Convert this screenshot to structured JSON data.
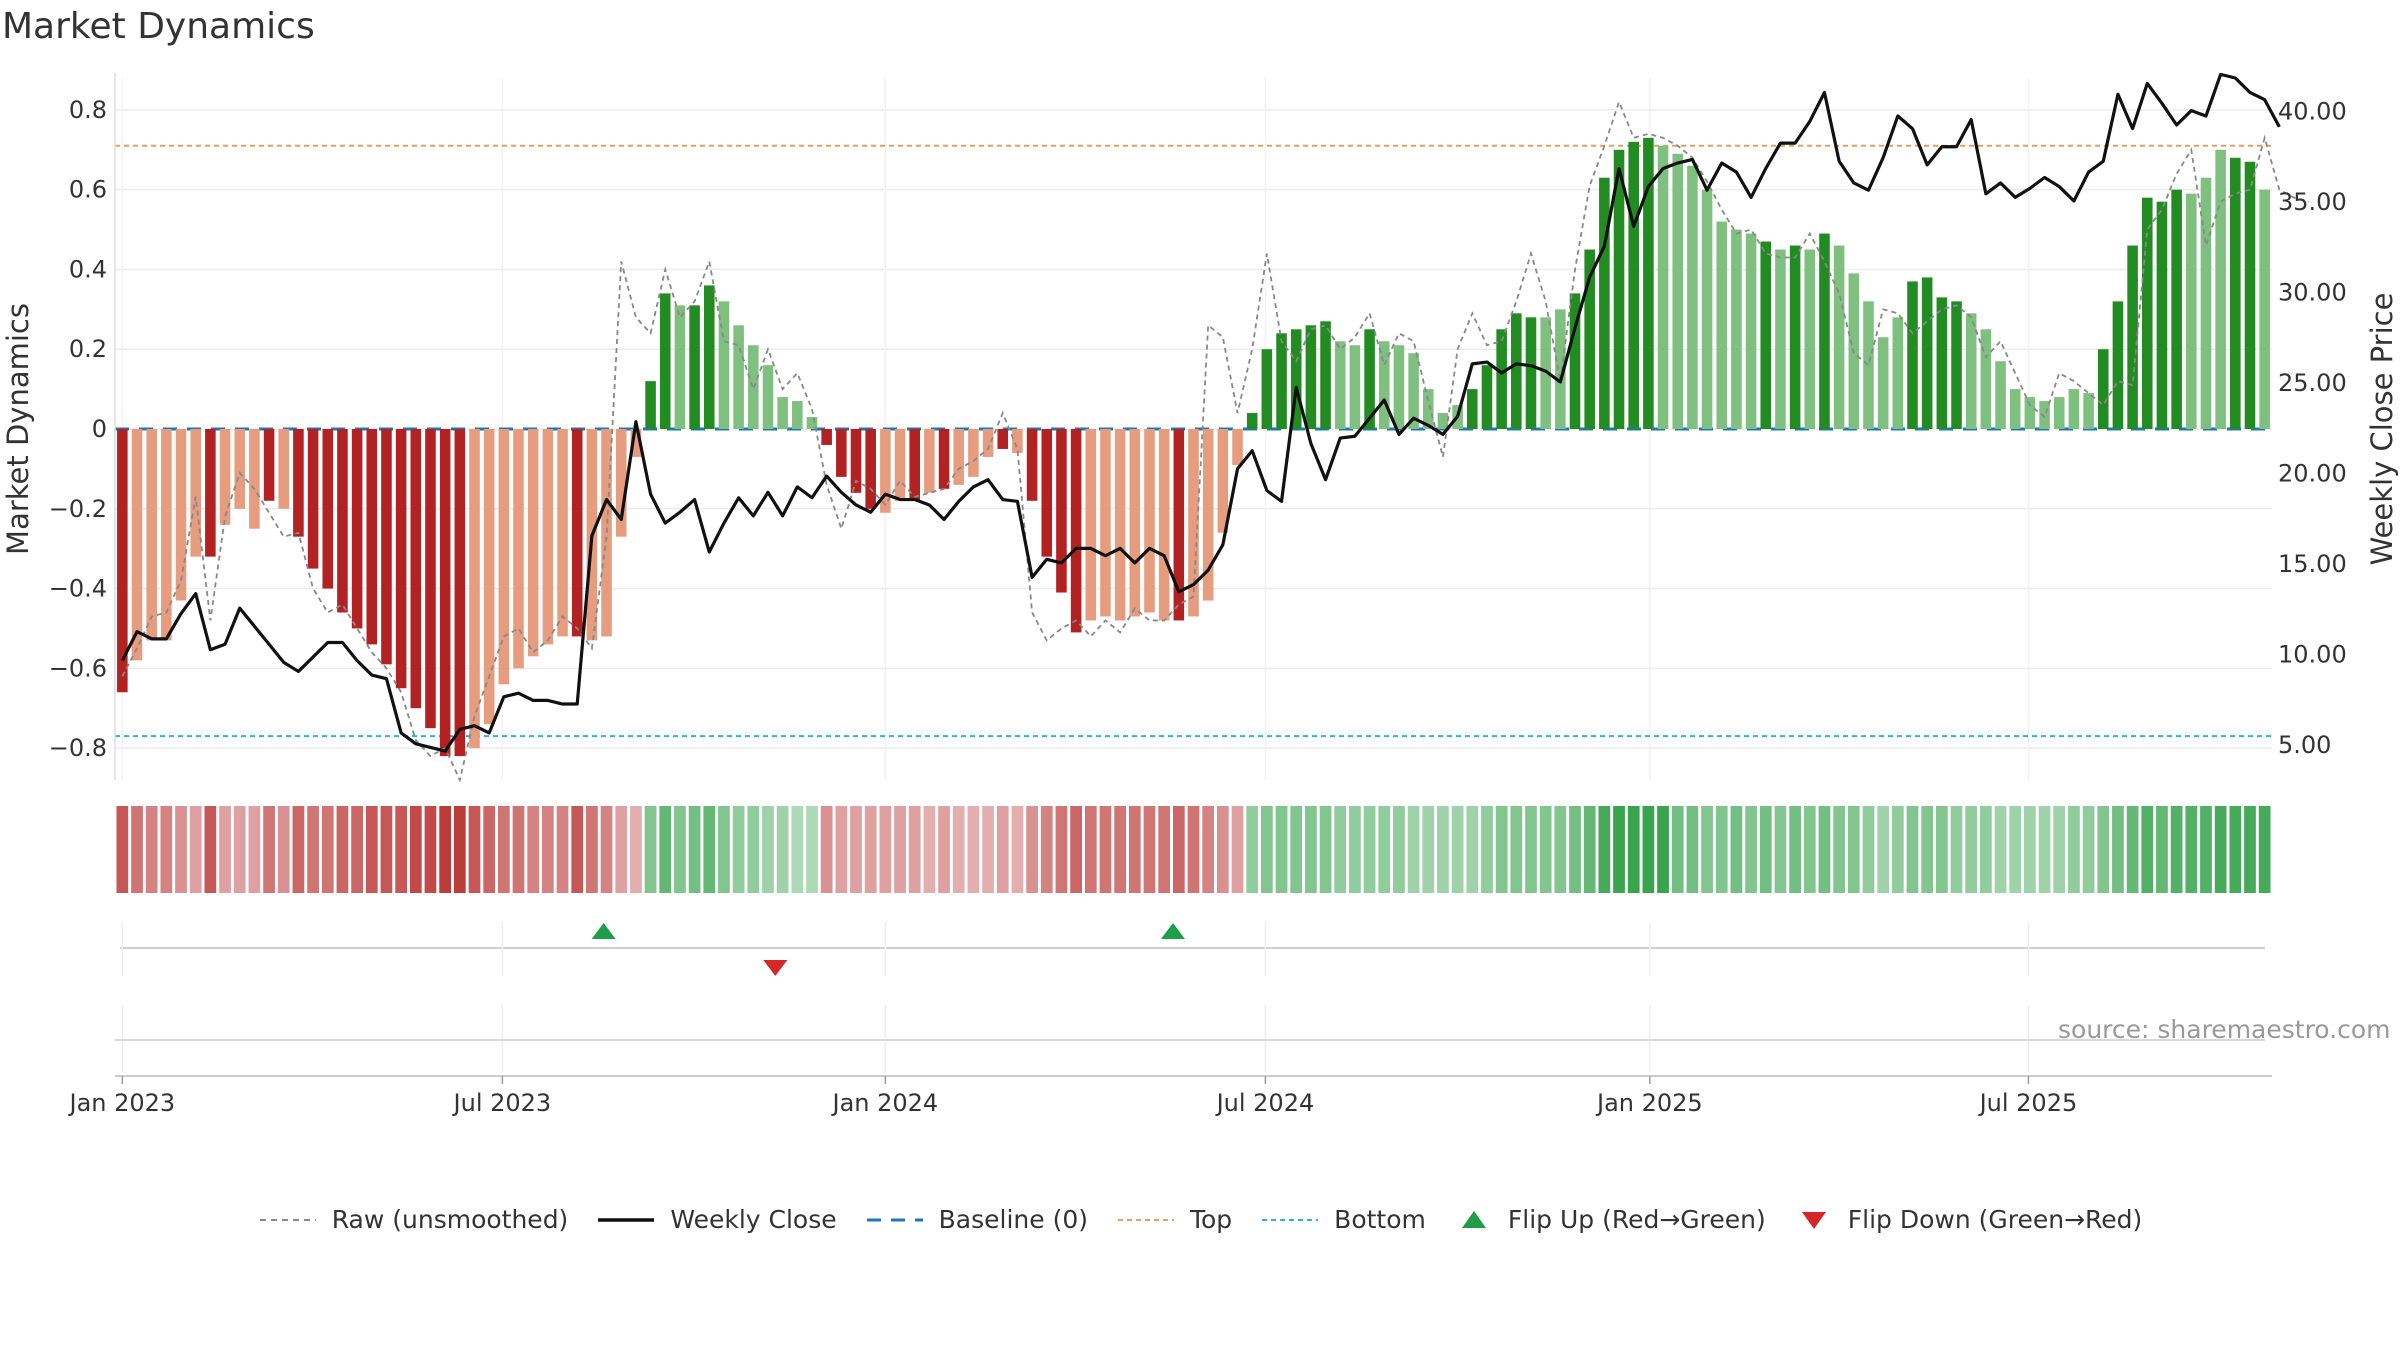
{
  "chart_data": {
    "type": "bar",
    "title": "Market Dynamics",
    "ylabel": "Market Dynamics",
    "y2label": "Weekly Close Price",
    "ylim": [
      -0.88,
      0.88
    ],
    "y2lim": [
      3.0,
      41.8
    ],
    "y_ticks": [
      0.8,
      0.6,
      0.4,
      0.2,
      0,
      -0.2,
      -0.4,
      -0.6,
      -0.8
    ],
    "y_tick_labels": [
      "0.8",
      "0.6",
      "0.4",
      "0.2",
      "0",
      "−0.2",
      "−0.4",
      "−0.6",
      "−0.8"
    ],
    "y2_ticks": [
      40,
      35,
      30,
      25,
      20,
      15,
      10,
      5
    ],
    "y2_tick_labels": [
      "40.00",
      "35.00",
      "30.00",
      "25.00",
      "20.00",
      "15.00",
      "10.00",
      "5.00"
    ],
    "x_tick_labels": [
      "Jan 2023",
      "Jul 2023",
      "Jan 2024",
      "Jul 2024",
      "Jan 2025",
      "Jul 2025"
    ],
    "x_tick_weeks": [
      0.0,
      25.9,
      52.0,
      77.9,
      104.1,
      129.9
    ],
    "top_level": 0.71,
    "bottom_level": -0.77,
    "baseline": 0,
    "flip_up_weeks": [
      32.8,
      71.6
    ],
    "flip_down_weeks": [
      44.5
    ],
    "grid": true,
    "legend_position": "bottom",
    "colors": {
      "strong_green": "#228b22",
      "light_green": "#7fbf7f",
      "strong_red": "#b22222",
      "light_red": "#e59c7f",
      "top": "#e0a060",
      "bottom": "#2ab7c9",
      "baseline": "#1f77b4",
      "raw": "#888888",
      "close": "#111111",
      "flip_up": "#1f9e4a",
      "flip_down": "#d62728"
    },
    "series": [
      {
        "name": "Market Dynamics",
        "values": [
          -0.66,
          -0.58,
          -0.53,
          -0.53,
          -0.43,
          -0.32,
          -0.32,
          -0.24,
          -0.2,
          -0.25,
          -0.18,
          -0.2,
          -0.27,
          -0.35,
          -0.4,
          -0.46,
          -0.5,
          -0.54,
          -0.59,
          -0.65,
          -0.7,
          -0.75,
          -0.82,
          -0.82,
          -0.8,
          -0.74,
          -0.64,
          -0.6,
          -0.57,
          -0.54,
          -0.52,
          -0.52,
          -0.53,
          -0.52,
          -0.27,
          -0.07,
          0.12,
          0.34,
          0.31,
          0.31,
          0.36,
          0.32,
          0.26,
          0.21,
          0.16,
          0.08,
          0.07,
          0.03,
          -0.04,
          -0.12,
          -0.16,
          -0.2,
          -0.21,
          -0.18,
          -0.18,
          -0.16,
          -0.15,
          -0.14,
          -0.12,
          -0.07,
          -0.05,
          -0.06,
          -0.18,
          -0.32,
          -0.41,
          -0.51,
          -0.48,
          -0.47,
          -0.48,
          -0.47,
          -0.46,
          -0.48,
          -0.48,
          -0.47,
          -0.43,
          -0.26,
          -0.09,
          0.04,
          0.2,
          0.24,
          0.25,
          0.26,
          0.27,
          0.22,
          0.21,
          0.25,
          0.22,
          0.21,
          0.19,
          0.1,
          0.04,
          0.06,
          0.1,
          0.16,
          0.25,
          0.29,
          0.28,
          0.28,
          0.3,
          0.34,
          0.45,
          0.63,
          0.7,
          0.72,
          0.73,
          0.71,
          0.69,
          0.66,
          0.6,
          0.52,
          0.5,
          0.49,
          0.47,
          0.45,
          0.46,
          0.45,
          0.49,
          0.46,
          0.39,
          0.32,
          0.23,
          0.28,
          0.37,
          0.38,
          0.33,
          0.32,
          0.29,
          0.25,
          0.17,
          0.1,
          0.08,
          0.07,
          0.08,
          0.1,
          0.09,
          0.2,
          0.32,
          0.46,
          0.58,
          0.57,
          0.6,
          0.59,
          0.63,
          0.7,
          0.68,
          0.67,
          0.6
        ],
        "strong_flags": [
          1,
          0,
          0,
          0,
          0,
          0,
          1,
          0,
          0,
          0,
          1,
          0,
          1,
          1,
          1,
          1,
          1,
          1,
          1,
          1,
          1,
          1,
          1,
          1,
          0,
          0,
          0,
          0,
          0,
          0,
          0,
          1,
          0,
          0,
          0,
          0,
          1,
          1,
          0,
          1,
          1,
          0,
          0,
          0,
          0,
          0,
          0,
          0,
          1,
          1,
          1,
          1,
          0,
          0,
          1,
          0,
          1,
          0,
          0,
          0,
          1,
          0,
          1,
          1,
          1,
          1,
          0,
          0,
          0,
          0,
          0,
          0,
          1,
          0,
          0,
          0,
          0,
          1,
          1,
          1,
          1,
          1,
          1,
          0,
          0,
          1,
          0,
          0,
          0,
          0,
          0,
          0,
          1,
          1,
          1,
          1,
          1,
          0,
          0,
          1,
          1,
          1,
          1,
          1,
          1,
          0,
          0,
          0,
          0,
          0,
          0,
          0,
          1,
          0,
          1,
          0,
          1,
          0,
          0,
          0,
          0,
          0,
          1,
          1,
          1,
          1,
          0,
          0,
          0,
          0,
          0,
          0,
          0,
          0,
          0,
          1,
          1,
          1,
          1,
          1,
          1,
          0,
          0,
          0,
          1,
          1,
          0,
          0,
          0
        ]
      },
      {
        "name": "Raw (unsmoothed)",
        "values": [
          -0.62,
          -0.55,
          -0.47,
          -0.46,
          -0.38,
          -0.17,
          -0.48,
          -0.22,
          -0.11,
          -0.15,
          -0.21,
          -0.27,
          -0.26,
          -0.4,
          -0.46,
          -0.44,
          -0.5,
          -0.56,
          -0.6,
          -0.66,
          -0.78,
          -0.82,
          -0.8,
          -0.88,
          -0.72,
          -0.62,
          -0.52,
          -0.5,
          -0.56,
          -0.53,
          -0.47,
          -0.5,
          -0.55,
          -0.27,
          0.42,
          0.28,
          0.24,
          0.4,
          0.28,
          0.32,
          0.42,
          0.22,
          0.21,
          0.1,
          0.2,
          0.1,
          0.14,
          0.05,
          -0.14,
          -0.25,
          -0.13,
          -0.15,
          -0.19,
          -0.13,
          -0.17,
          -0.16,
          -0.15,
          -0.1,
          -0.08,
          -0.05,
          0.04,
          -0.05,
          -0.46,
          -0.53,
          -0.5,
          -0.48,
          -0.52,
          -0.48,
          -0.51,
          -0.45,
          -0.48,
          -0.48,
          -0.44,
          -0.42,
          0.26,
          0.23,
          0.04,
          0.2,
          0.44,
          0.22,
          0.17,
          0.25,
          0.26,
          0.2,
          0.23,
          0.29,
          0.16,
          0.24,
          0.22,
          0.07,
          -0.07,
          0.2,
          0.29,
          0.21,
          0.22,
          0.32,
          0.44,
          0.32,
          0.12,
          0.4,
          0.61,
          0.71,
          0.82,
          0.73,
          0.74,
          0.73,
          0.71,
          0.68,
          0.62,
          0.55,
          0.49,
          0.5,
          0.44,
          0.43,
          0.43,
          0.49,
          0.42,
          0.34,
          0.19,
          0.16,
          0.3,
          0.29,
          0.24,
          0.27,
          0.3,
          0.31,
          0.28,
          0.18,
          0.22,
          0.14,
          0.06,
          0.03,
          0.14,
          0.12,
          0.09,
          0.06,
          0.12,
          0.11,
          0.5,
          0.55,
          0.64,
          0.7,
          0.46,
          0.57,
          0.59,
          0.6,
          0.73,
          0.6,
          0.58,
          0.57
        ]
      },
      {
        "name": "Weekly Close",
        "values": [
          9.6,
          11.2,
          10.8,
          10.8,
          12.2,
          13.3,
          10.2,
          10.5,
          12.5,
          11.5,
          10.5,
          9.5,
          9.0,
          9.8,
          10.6,
          10.6,
          9.6,
          8.8,
          8.6,
          5.6,
          5.0,
          4.8,
          4.6,
          5.8,
          6.0,
          5.6,
          7.6,
          7.8,
          7.4,
          7.4,
          7.2,
          7.2,
          16.5,
          18.5,
          17.4,
          22.8,
          18.8,
          17.2,
          17.8,
          18.5,
          15.6,
          17.2,
          18.6,
          17.6,
          18.9,
          17.6,
          19.2,
          18.6,
          19.8,
          18.9,
          18.2,
          17.8,
          18.8,
          18.5,
          18.5,
          18.2,
          17.4,
          18.4,
          19.2,
          19.6,
          18.5,
          18.4,
          14.2,
          15.2,
          15.0,
          15.8,
          15.8,
          15.4,
          15.8,
          15.0,
          15.8,
          15.4,
          13.4,
          13.8,
          14.6,
          16.0,
          20.2,
          21.2,
          19.0,
          18.4,
          24.7,
          21.6,
          19.6,
          21.9,
          22.0,
          23.0,
          24.0,
          22.1,
          23.0,
          22.6,
          22.1,
          23.1,
          26.0,
          26.1,
          25.5,
          26.0,
          25.9,
          25.6,
          25.0,
          28.0,
          30.8,
          32.5,
          36.8,
          33.6,
          35.8,
          36.8,
          37.1,
          37.3,
          35.6,
          37.1,
          36.6,
          35.2,
          36.8,
          38.2,
          38.2,
          39.4,
          41.0,
          37.2,
          36.0,
          35.6,
          37.4,
          39.7,
          39.0,
          37.0,
          38.0,
          38.0,
          39.5,
          35.4,
          36.0,
          35.2,
          35.7,
          36.3,
          35.8,
          35.0,
          36.6,
          37.2,
          40.9,
          39.0,
          41.5,
          40.4,
          39.2,
          40.0,
          39.7,
          42.0,
          41.8,
          41.0,
          40.6,
          39.1
        ]
      }
    ],
    "bottom_strip_intensity": [
      0.8,
      0.6,
      0.5,
      0.5,
      0.4,
      0.3,
      0.8,
      0.3,
      0.3,
      0.3,
      0.6,
      0.4,
      0.7,
      0.6,
      0.6,
      0.7,
      0.7,
      0.8,
      0.8,
      0.8,
      0.9,
      0.9,
      1.0,
      1.0,
      0.8,
      0.7,
      0.6,
      0.6,
      0.5,
      0.5,
      0.5,
      0.8,
      0.6,
      0.5,
      0.3,
      0.2,
      0.5,
      0.7,
      0.5,
      0.6,
      0.7,
      0.5,
      0.4,
      0.4,
      0.3,
      0.3,
      0.2,
      0.2,
      0.4,
      0.3,
      0.3,
      0.3,
      0.3,
      0.3,
      0.3,
      0.2,
      0.3,
      0.2,
      0.2,
      0.2,
      0.3,
      0.2,
      0.4,
      0.5,
      0.6,
      0.7,
      0.6,
      0.6,
      0.6,
      0.6,
      0.6,
      0.6,
      0.7,
      0.6,
      0.5,
      0.4,
      0.3,
      0.4,
      0.5,
      0.5,
      0.5,
      0.5,
      0.5,
      0.4,
      0.4,
      0.4,
      0.4,
      0.4,
      0.3,
      0.3,
      0.3,
      0.3,
      0.3,
      0.4,
      0.5,
      0.5,
      0.5,
      0.5,
      0.5,
      0.6,
      0.7,
      0.9,
      1.0,
      1.0,
      1.0,
      1.0,
      0.6,
      0.6,
      0.5,
      0.5,
      0.6,
      0.5,
      0.6,
      0.5,
      0.6,
      0.5,
      0.6,
      0.5,
      0.5,
      0.4,
      0.3,
      0.4,
      0.5,
      0.5,
      0.5,
      0.4,
      0.4,
      0.4,
      0.3,
      0.3,
      0.3,
      0.3,
      0.3,
      0.4,
      0.4,
      0.5,
      0.6,
      0.7,
      0.8,
      0.7,
      0.8,
      0.8,
      0.8,
      0.9,
      0.9,
      0.9,
      0.9
    ]
  },
  "source_text": "source: sharemaestro.com",
  "legend": {
    "raw": "Raw (unsmoothed)",
    "close": "Weekly Close",
    "baseline": "Baseline (0)",
    "top": "Top",
    "bottom": "Bottom",
    "flip_up": "Flip Up (Red→Green)",
    "flip_down": "Flip Down (Green→Red)"
  }
}
